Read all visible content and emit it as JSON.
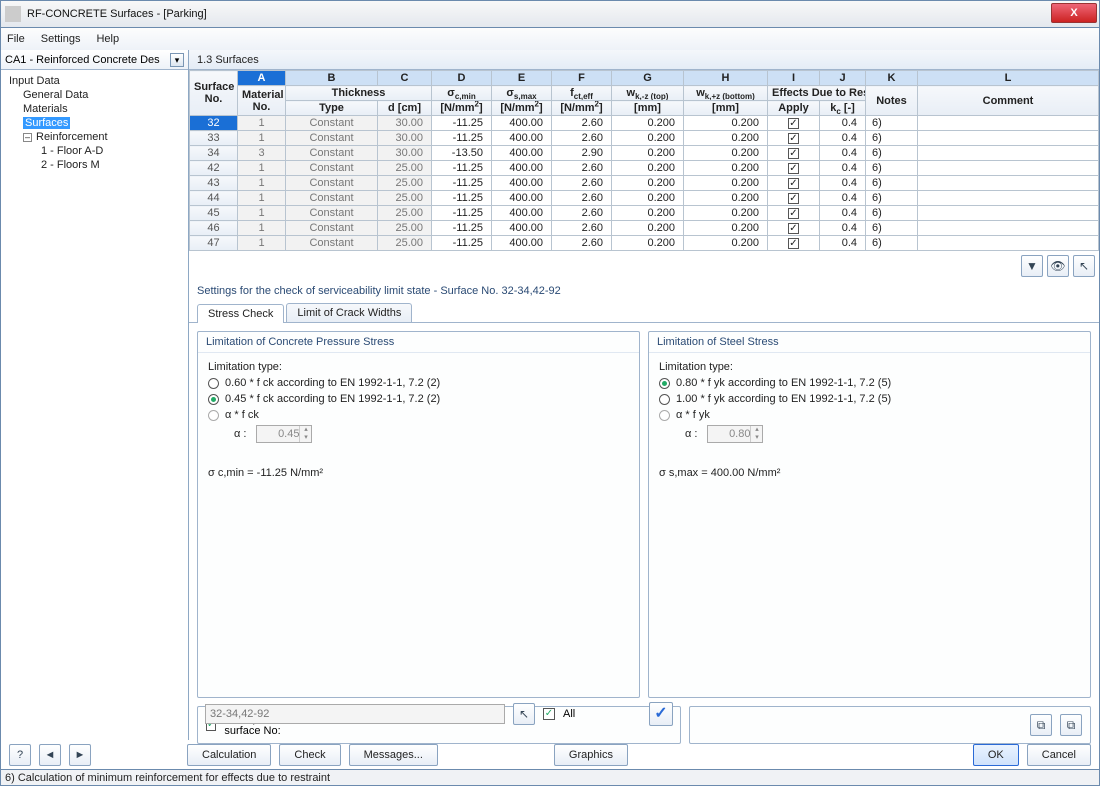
{
  "window": {
    "title": "RF-CONCRETE Surfaces - [Parking]"
  },
  "menu": {
    "file": "File",
    "settings": "Settings",
    "help": "Help"
  },
  "left": {
    "combo": "CA1 - Reinforced Concrete Des",
    "tree": {
      "root": "Input Data",
      "general": "General Data",
      "materials": "Materials",
      "surfaces": "Surfaces",
      "reinforcement": "Reinforcement",
      "r1": "1 - Floor A-D",
      "r2": "2 - Floors M"
    }
  },
  "section_title": "1.3 Surfaces",
  "columns": {
    "letters": [
      "A",
      "B",
      "C",
      "D",
      "E",
      "F",
      "G",
      "H",
      "I",
      "J",
      "K",
      "L"
    ],
    "surface_no": "Surface\nNo.",
    "material_no": "Material\nNo.",
    "thickness": "Thickness",
    "type": "Type",
    "d": "d [cm]",
    "sigma_cmin": "σ c,min",
    "sigma_smax": "σ s,max",
    "fcteff": "f ct,eff",
    "wk_top": "w k,-z (top)",
    "wk_bot": "w k,+z (bottom)",
    "effects": "Effects Due to Restrai",
    "apply": "Apply",
    "kc": "k c [-]",
    "notes": "Notes",
    "comment": "Comment",
    "unit_nmm2": "[N/mm²]",
    "unit_mm": "[mm]"
  },
  "rows": [
    {
      "no": "32",
      "mat": "1",
      "type": "Constant",
      "d": "30.00",
      "scmin": "-11.25",
      "ssmax": "400.00",
      "fct": "2.60",
      "wktop": "0.200",
      "wkbot": "0.200",
      "apply": true,
      "kc": "0.4",
      "notes": "6)",
      "sel": true
    },
    {
      "no": "33",
      "mat": "1",
      "type": "Constant",
      "d": "30.00",
      "scmin": "-11.25",
      "ssmax": "400.00",
      "fct": "2.60",
      "wktop": "0.200",
      "wkbot": "0.200",
      "apply": true,
      "kc": "0.4",
      "notes": "6)"
    },
    {
      "no": "34",
      "mat": "3",
      "type": "Constant",
      "d": "30.00",
      "scmin": "-13.50",
      "ssmax": "400.00",
      "fct": "2.90",
      "wktop": "0.200",
      "wkbot": "0.200",
      "apply": true,
      "kc": "0.4",
      "notes": "6)"
    },
    {
      "no": "42",
      "mat": "1",
      "type": "Constant",
      "d": "25.00",
      "scmin": "-11.25",
      "ssmax": "400.00",
      "fct": "2.60",
      "wktop": "0.200",
      "wkbot": "0.200",
      "apply": true,
      "kc": "0.4",
      "notes": "6)"
    },
    {
      "no": "43",
      "mat": "1",
      "type": "Constant",
      "d": "25.00",
      "scmin": "-11.25",
      "ssmax": "400.00",
      "fct": "2.60",
      "wktop": "0.200",
      "wkbot": "0.200",
      "apply": true,
      "kc": "0.4",
      "notes": "6)"
    },
    {
      "no": "44",
      "mat": "1",
      "type": "Constant",
      "d": "25.00",
      "scmin": "-11.25",
      "ssmax": "400.00",
      "fct": "2.60",
      "wktop": "0.200",
      "wkbot": "0.200",
      "apply": true,
      "kc": "0.4",
      "notes": "6)"
    },
    {
      "no": "45",
      "mat": "1",
      "type": "Constant",
      "d": "25.00",
      "scmin": "-11.25",
      "ssmax": "400.00",
      "fct": "2.60",
      "wktop": "0.200",
      "wkbot": "0.200",
      "apply": true,
      "kc": "0.4",
      "notes": "6)"
    },
    {
      "no": "46",
      "mat": "1",
      "type": "Constant",
      "d": "25.00",
      "scmin": "-11.25",
      "ssmax": "400.00",
      "fct": "2.60",
      "wktop": "0.200",
      "wkbot": "0.200",
      "apply": true,
      "kc": "0.4",
      "notes": "6)"
    },
    {
      "no": "47",
      "mat": "1",
      "type": "Constant",
      "d": "25.00",
      "scmin": "-11.25",
      "ssmax": "400.00",
      "fct": "2.60",
      "wktop": "0.200",
      "wkbot": "0.200",
      "apply": true,
      "kc": "0.4",
      "notes": "6)"
    }
  ],
  "settings_header": "Settings for the check of serviceability limit state - Surface No. 32-34,42-92",
  "tabs": {
    "stress": "Stress Check",
    "crack": "Limit of Crack Widths"
  },
  "panel_concrete": {
    "title": "Limitation of Concrete Pressure Stress",
    "limtype": "Limitation type:",
    "opt1": "0.60 * f ck  according to EN 1992-1-1, 7.2 (2)",
    "opt2": "0.45 * f ck  according to EN 1992-1-1, 7.2 (2)",
    "opt3": "α * f ck",
    "alpha_label": "α :",
    "alpha_val": "0.45",
    "result_label": "σ c,min  =",
    "result_val": "-11.25 N/mm²"
  },
  "panel_steel": {
    "title": "Limitation of Steel Stress",
    "limtype": "Limitation type:",
    "opt1": "0.80 * f yk  according to EN 1992-1-1, 7.2 (5)",
    "opt2": "1.00 * f yk  according to EN 1992-1-1, 7.2 (5)",
    "opt3": "α * f yk",
    "alpha_label": "α :",
    "alpha_val": "0.80",
    "result_label": "σ s,max  =",
    "result_val": "400.00 N/mm²"
  },
  "bottom": {
    "set_inputs": "Set inputs for surface No:",
    "range": "32-34,42-92",
    "all": "All"
  },
  "footer": {
    "calculation": "Calculation",
    "check": "Check",
    "messages": "Messages...",
    "graphics": "Graphics",
    "ok": "OK",
    "cancel": "Cancel"
  },
  "status": "6) Calculation of minimum reinforcement for effects due to restraint"
}
